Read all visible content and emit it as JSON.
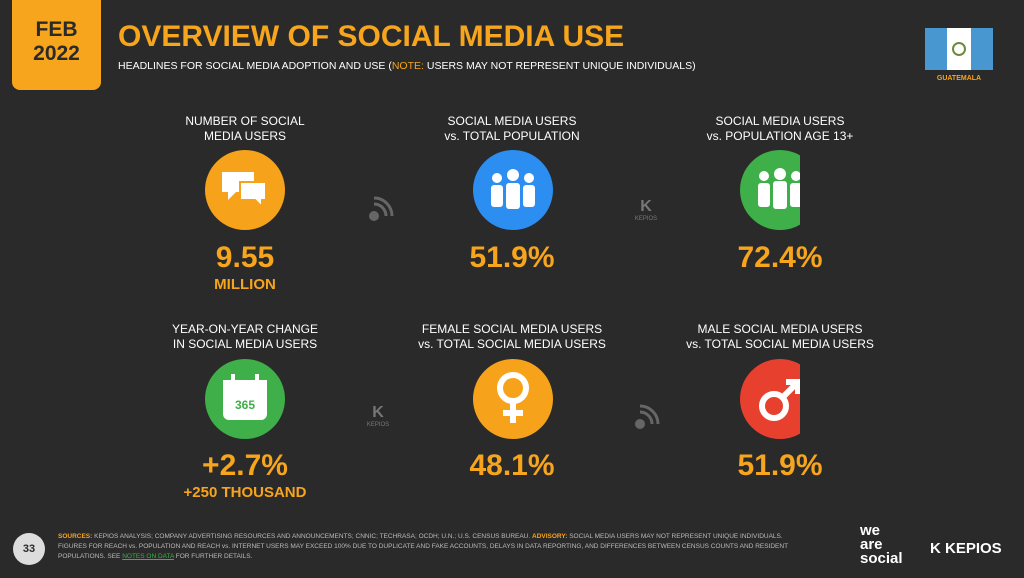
{
  "header": {
    "date_month": "FEB",
    "date_year": "2022",
    "title": "OVERVIEW OF SOCIAL MEDIA USE",
    "subtitle_before": "HEADLINES FOR SOCIAL MEDIA ADOPTION AND USE (",
    "subtitle_note_label": "NOTE:",
    "subtitle_after": " USERS MAY NOT REPRESENT UNIQUE INDIVIDUALS)",
    "country": "GUATEMALA"
  },
  "stats": [
    {
      "label_line1": "NUMBER OF SOCIAL",
      "label_line2": "MEDIA USERS",
      "value": "9.55",
      "sub": "MILLION"
    },
    {
      "label_line1": "SOCIAL MEDIA USERS",
      "label_line2": "vs. TOTAL POPULATION",
      "value": "51.9%"
    },
    {
      "label_line1": "SOCIAL MEDIA USERS",
      "label_line2": "vs. POPULATION AGE 13+",
      "value": "72.4%"
    },
    {
      "label_line1": "YEAR-ON-YEAR CHANGE",
      "label_line2": "IN SOCIAL MEDIA USERS",
      "value": "+2.7%",
      "sub": "+250 THOUSAND",
      "icon_text": "365"
    },
    {
      "label_line1": "FEMALE SOCIAL MEDIA USERS",
      "label_line2": "vs. TOTAL SOCIAL MEDIA USERS",
      "value": "48.1%"
    },
    {
      "label_line1": "MALE SOCIAL MEDIA USERS",
      "label_line2": "vs. TOTAL SOCIAL MEDIA USERS",
      "value": "51.9%"
    }
  ],
  "watermark": "KEPIOS",
  "footer": {
    "page_number": "33",
    "sources_label": "SOURCES:",
    "sources_text": " KEPIOS ANALYSIS; COMPANY ADVERTISING RESOURCES AND ANNOUNCEMENTS; CNNIC; TECHRASA; OCDH; U.N.; U.S. CENSUS BUREAU. ",
    "advisory_label": "ADVISORY:",
    "advisory_text": " SOCIAL MEDIA USERS MAY NOT REPRESENT UNIQUE INDIVIDUALS. FIGURES FOR REACH vs. POPULATION AND REACH vs. INTERNET USERS MAY EXCEED 100% DUE TO DUPLICATE AND FAKE ACCOUNTS, DELAYS IN DATA REPORTING, AND DIFFERENCES BETWEEN CENSUS COUNTS AND RESIDENT POPULATIONS. SEE ",
    "notes_link": "NOTES ON DATA",
    "notes_after": " FOR FURTHER DETAILS.",
    "logo_we": "we",
    "logo_are": "are",
    "logo_social": "social",
    "logo_kepios": "KEPIOS"
  }
}
